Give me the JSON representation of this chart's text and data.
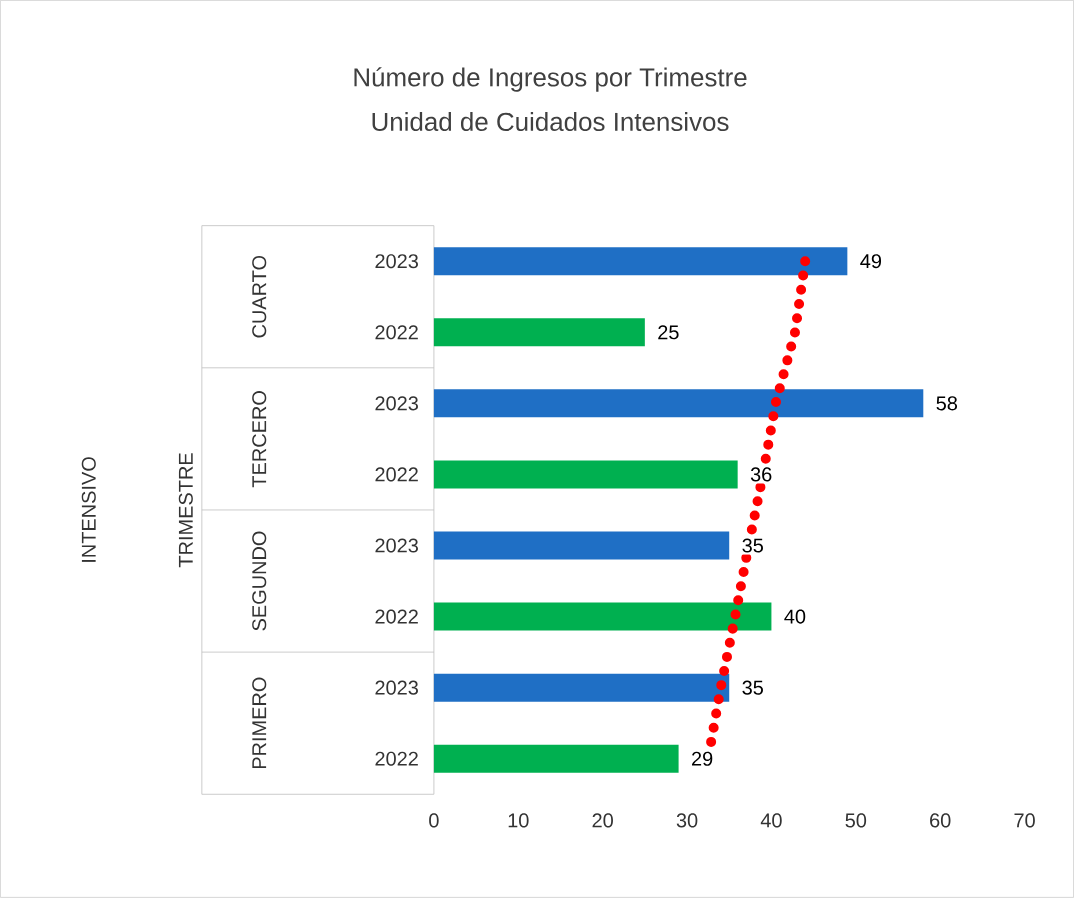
{
  "chart_data": {
    "type": "bar",
    "orientation": "horizontal",
    "title": "Número de Ingresos por Trimestre",
    "subtitle": "Unidad de Cuidados Intensivos",
    "categories": [
      "2023",
      "2022",
      "2023",
      "2022",
      "2023",
      "2022",
      "2023",
      "2022"
    ],
    "annotations": [
      "CUARTO",
      "TERCERO",
      "SEGUNDO",
      "PRIMERO",
      "TRIMESTRE",
      "INTENSIVO"
    ],
    "series": [
      {
        "colors": [
          "#1f6fc5",
          "#00b050",
          "#1f6fc5",
          "#00b050",
          "#1f6fc5",
          "#00b050",
          "#1f6fc5",
          "#00b050"
        ],
        "values": [
          49,
          25,
          58,
          36,
          35,
          40,
          35,
          29
        ],
        "value_labels": [
          "49",
          "25",
          "58",
          "36",
          "35",
          "40",
          "35",
          "29"
        ]
      },
      {
        "type": "line",
        "color": "#ff0000",
        "line_style": "dotted",
        "values": [
          44,
          42.8,
          40.5,
          39,
          37.3,
          35.7,
          34,
          32.5
        ]
      }
    ],
    "xlim": [
      0,
      70
    ],
    "xticks": [
      0,
      10,
      20,
      30,
      40,
      50,
      60,
      70
    ],
    "grid": false
  }
}
